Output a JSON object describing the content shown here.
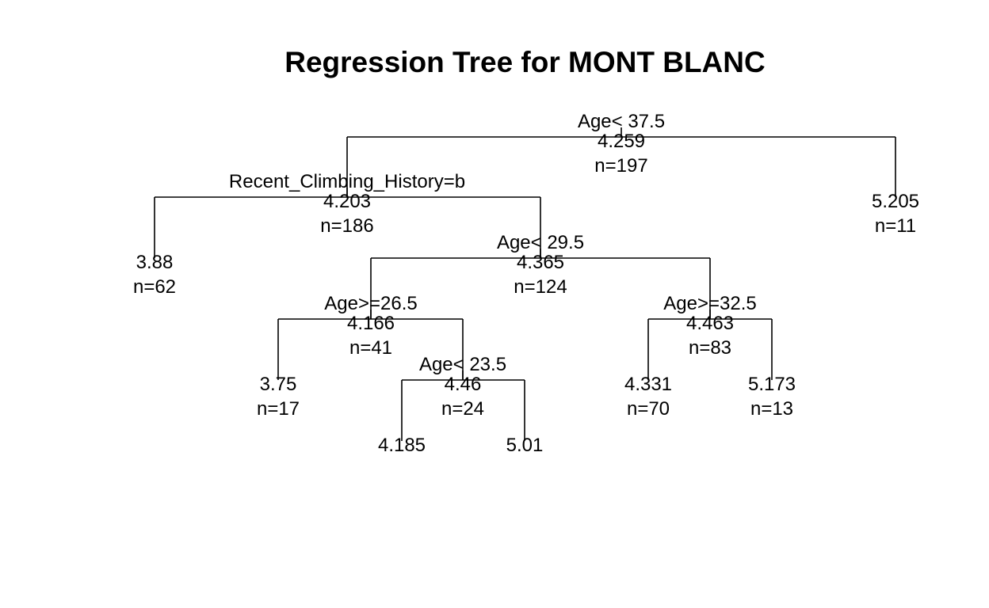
{
  "title": "Regression Tree for MONT BLANC",
  "tree": {
    "nodes": [
      {
        "id": "root",
        "split": "Age< 37.5",
        "value": "4.259",
        "n": "n=197"
      },
      {
        "id": "n2",
        "split": "Recent_Climbing_History=b",
        "value": "4.203",
        "n": "n=186"
      },
      {
        "id": "n3",
        "split": "",
        "value": "5.205",
        "n": "n=11"
      },
      {
        "id": "n4",
        "split": "",
        "value": "3.88",
        "n": "n=62"
      },
      {
        "id": "n5",
        "split": "Age< 29.5",
        "value": "4.365",
        "n": "n=124"
      },
      {
        "id": "n10",
        "split": "Age>=26.5",
        "value": "4.166",
        "n": "n=41"
      },
      {
        "id": "n11",
        "split": "Age>=32.5",
        "value": "4.463",
        "n": "n=83"
      },
      {
        "id": "n20",
        "split": "",
        "value": "3.75",
        "n": "n=17"
      },
      {
        "id": "n21",
        "split": "Age< 23.5",
        "value": "4.46",
        "n": "n=24"
      },
      {
        "id": "n22",
        "split": "",
        "value": "4.331",
        "n": "n=70"
      },
      {
        "id": "n23",
        "split": "",
        "value": "5.173",
        "n": "n=13"
      },
      {
        "id": "n42",
        "split": "",
        "value": "4.185",
        "n": ""
      },
      {
        "id": "n43",
        "split": "",
        "value": "5.01",
        "n": ""
      }
    ],
    "edges": [
      [
        "root",
        "n2"
      ],
      [
        "root",
        "n3"
      ],
      [
        "n2",
        "n4"
      ],
      [
        "n2",
        "n5"
      ],
      [
        "n5",
        "n10"
      ],
      [
        "n5",
        "n11"
      ],
      [
        "n10",
        "n20"
      ],
      [
        "n10",
        "n21"
      ],
      [
        "n11",
        "n22"
      ],
      [
        "n11",
        "n23"
      ],
      [
        "n21",
        "n42"
      ],
      [
        "n21",
        "n43"
      ]
    ]
  }
}
